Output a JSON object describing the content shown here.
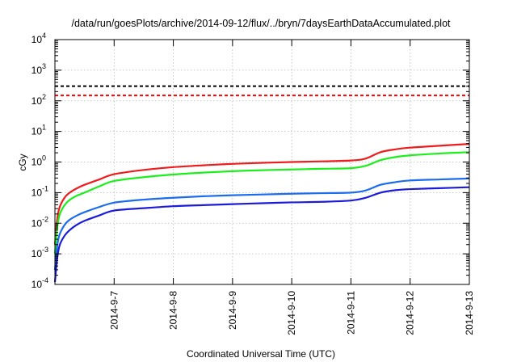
{
  "chart_data": {
    "type": "line",
    "title": "/data/run/goesPlots/archive/2014-09-12/flux/../bryn/7daysEarthDataAccumulated.plot",
    "xlabel": "Coordinated Universal Time (UTC)",
    "ylabel": "cGy",
    "xlim": [
      "2014-09-06 00:00",
      "2014-09-13 00:00"
    ],
    "ylim": [
      0.0001,
      10000
    ],
    "yscale": "log",
    "grid": true,
    "x_ticks": [
      "2014-9-7",
      "2014-9-8",
      "2014-9-9",
      "2014-9-10",
      "2014-9-11",
      "2014-9-12",
      "2014-9-13"
    ],
    "y_ticks": [
      {
        "value": 0.0001,
        "base": "10",
        "exp": "-4"
      },
      {
        "value": 0.001,
        "base": "10",
        "exp": "-3"
      },
      {
        "value": 0.01,
        "base": "10",
        "exp": "-2"
      },
      {
        "value": 0.1,
        "base": "10",
        "exp": "-1"
      },
      {
        "value": 1,
        "base": "10",
        "exp": "0"
      },
      {
        "value": 10,
        "base": "10",
        "exp": "1"
      },
      {
        "value": 100,
        "base": "10",
        "exp": "2"
      },
      {
        "value": 1000,
        "base": "10",
        "exp": "3"
      },
      {
        "value": 10000,
        "base": "10",
        "exp": "4"
      }
    ],
    "reference_lines": [
      {
        "value": 300,
        "color": "#000000",
        "style": "dashed"
      },
      {
        "value": 150,
        "color": "#ff0000",
        "style": "dashed"
      }
    ],
    "series": [
      {
        "color": "#ee1c1c",
        "x": [
          "2014-09-06 00:00",
          "2014-09-06 01:00",
          "2014-09-06 02:00",
          "2014-09-06 04:00",
          "2014-09-06 06:00",
          "2014-09-06 09:00",
          "2014-09-06 12:00",
          "2014-09-06 18:00",
          "2014-09-07 00:00",
          "2014-09-07 12:00",
          "2014-09-08 00:00",
          "2014-09-08 12:00",
          "2014-09-09 00:00",
          "2014-09-09 12:00",
          "2014-09-10 00:00",
          "2014-09-10 12:00",
          "2014-09-11 00:00",
          "2014-09-11 06:00",
          "2014-09-11 12:00",
          "2014-09-11 18:00",
          "2014-09-12 00:00",
          "2014-09-12 12:00",
          "2014-09-13 00:00"
        ],
        "values": [
          0.002,
          0.015,
          0.035,
          0.07,
          0.1,
          0.14,
          0.18,
          0.27,
          0.4,
          0.55,
          0.68,
          0.78,
          0.87,
          0.94,
          1.0,
          1.05,
          1.12,
          1.3,
          2.1,
          2.6,
          2.95,
          3.4,
          3.9
        ]
      },
      {
        "color": "#1cee1c",
        "x": [
          "2014-09-06 00:00",
          "2014-09-06 01:00",
          "2014-09-06 02:00",
          "2014-09-06 04:00",
          "2014-09-06 06:00",
          "2014-09-06 09:00",
          "2014-09-06 12:00",
          "2014-09-06 18:00",
          "2014-09-07 00:00",
          "2014-09-07 12:00",
          "2014-09-08 00:00",
          "2014-09-08 12:00",
          "2014-09-09 00:00",
          "2014-09-09 12:00",
          "2014-09-10 00:00",
          "2014-09-10 12:00",
          "2014-09-11 00:00",
          "2014-09-11 06:00",
          "2014-09-11 12:00",
          "2014-09-11 18:00",
          "2014-09-12 00:00",
          "2014-09-12 12:00",
          "2014-09-13 00:00"
        ],
        "values": [
          0.001,
          0.008,
          0.02,
          0.04,
          0.058,
          0.08,
          0.1,
          0.16,
          0.24,
          0.32,
          0.39,
          0.45,
          0.5,
          0.54,
          0.57,
          0.6,
          0.63,
          0.75,
          1.15,
          1.45,
          1.65,
          1.9,
          2.1
        ]
      },
      {
        "color": "#1c6cee",
        "x": [
          "2014-09-06 00:00",
          "2014-09-06 01:00",
          "2014-09-06 02:00",
          "2014-09-06 04:00",
          "2014-09-06 06:00",
          "2014-09-06 09:00",
          "2014-09-06 12:00",
          "2014-09-06 18:00",
          "2014-09-07 00:00",
          "2014-09-07 12:00",
          "2014-09-08 00:00",
          "2014-09-08 12:00",
          "2014-09-09 00:00",
          "2014-09-09 12:00",
          "2014-09-10 00:00",
          "2014-09-10 12:00",
          "2014-09-11 00:00",
          "2014-09-11 06:00",
          "2014-09-11 12:00",
          "2014-09-11 18:00",
          "2014-09-12 00:00",
          "2014-09-12 12:00",
          "2014-09-13 00:00"
        ],
        "values": [
          0.0003,
          0.002,
          0.0045,
          0.009,
          0.013,
          0.018,
          0.023,
          0.034,
          0.047,
          0.059,
          0.068,
          0.076,
          0.082,
          0.087,
          0.092,
          0.096,
          0.1,
          0.118,
          0.18,
          0.22,
          0.25,
          0.27,
          0.29
        ]
      },
      {
        "color": "#1c1cd8",
        "x": [
          "2014-09-06 00:00",
          "2014-09-06 01:00",
          "2014-09-06 02:00",
          "2014-09-06 04:00",
          "2014-09-06 06:00",
          "2014-09-06 09:00",
          "2014-09-06 12:00",
          "2014-09-06 18:00",
          "2014-09-07 00:00",
          "2014-09-07 12:00",
          "2014-09-08 00:00",
          "2014-09-08 12:00",
          "2014-09-09 00:00",
          "2014-09-09 12:00",
          "2014-09-10 00:00",
          "2014-09-10 12:00",
          "2014-09-11 00:00",
          "2014-09-11 06:00",
          "2014-09-11 12:00",
          "2014-09-11 18:00",
          "2014-09-12 00:00",
          "2014-09-12 12:00",
          "2014-09-13 00:00"
        ],
        "values": [
          0.00012,
          0.0008,
          0.002,
          0.004,
          0.006,
          0.009,
          0.012,
          0.018,
          0.026,
          0.031,
          0.036,
          0.039,
          0.042,
          0.045,
          0.048,
          0.05,
          0.055,
          0.068,
          0.1,
          0.12,
          0.13,
          0.14,
          0.15
        ]
      }
    ]
  }
}
